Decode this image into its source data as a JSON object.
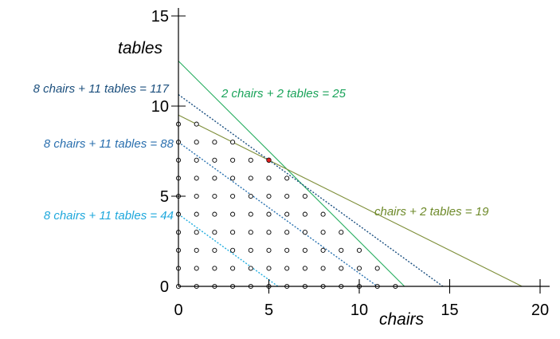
{
  "chart_data": {
    "type": "scatter",
    "xlabel": "chairs",
    "ylabel": "tables",
    "xlim": [
      0,
      20
    ],
    "ylim": [
      0,
      15
    ],
    "xticks": [
      {
        "value": 0,
        "label": "0"
      },
      {
        "value": 5,
        "label": "5"
      },
      {
        "value": 10,
        "label": "10"
      },
      {
        "value": 15,
        "label": "15"
      },
      {
        "value": 20,
        "label": "20"
      }
    ],
    "yticks": [
      {
        "value": 0,
        "label": "0"
      },
      {
        "value": 5,
        "label": "5"
      },
      {
        "value": 10,
        "label": "10"
      },
      {
        "value": 15,
        "label": "15"
      }
    ],
    "grid": false,
    "feasible_points_rule": "integer points with 2*chairs + 2*tables <= 25 and chairs + 2*tables <= 19, chairs >= 0, tables >= 0",
    "optimal_point": {
      "x": 5,
      "y": 7,
      "color": "#e02020"
    },
    "lines": [
      {
        "label": "2 chairs + 2 tables = 25",
        "a": 2,
        "b": 2,
        "c": 25,
        "style": "solid",
        "color": "#27ae60",
        "text_color": "#1aa35a"
      },
      {
        "label": "chairs + 2 tables = 19",
        "a": 1,
        "b": 2,
        "c": 19,
        "style": "solid",
        "color": "#7f8f3a",
        "text_color": "#6e8a2a"
      },
      {
        "label": "8 chairs + 11 tables = 117",
        "a": 8,
        "b": 11,
        "c": 117,
        "style": "dotted",
        "color": "#1a4f80",
        "text_color": "#1b4f7d"
      },
      {
        "label": "8 chairs + 11 tables = 88",
        "a": 8,
        "b": 11,
        "c": 88,
        "style": "dotted",
        "color": "#2a72b0",
        "text_color": "#2a6fae"
      },
      {
        "label": "8 chairs + 11 tables = 44",
        "a": 8,
        "b": 11,
        "c": 44,
        "style": "dotted",
        "color": "#22aee0",
        "text_color": "#1fa8dc"
      }
    ]
  }
}
